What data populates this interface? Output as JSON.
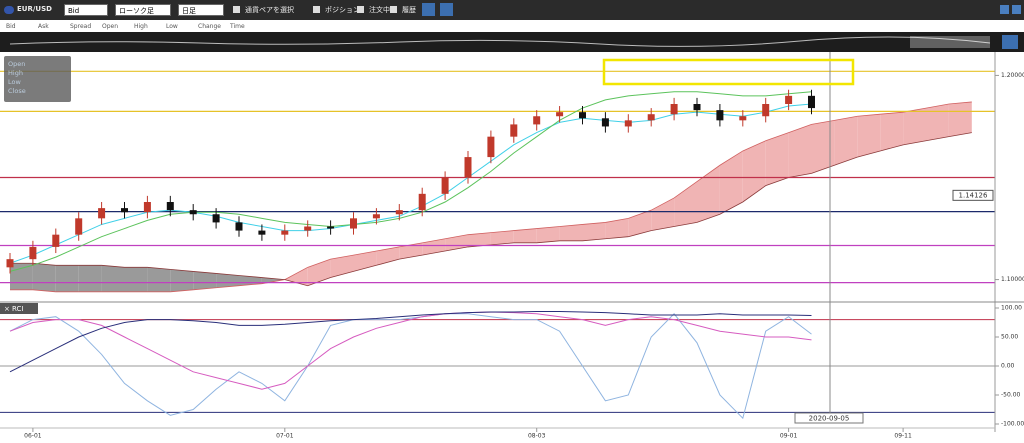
{
  "toolbar": {
    "pair": "EUR/USD",
    "price_type": "Bid",
    "chart_type": "ローソク足",
    "period": "日足",
    "select_pair": "通貨ペアを選択",
    "position": "ポジション",
    "orders": "注文中",
    "history": "履歴"
  },
  "info_bar": [
    "Bid",
    "Ask",
    "Spread",
    "Open",
    "High",
    "Low",
    "Change",
    "Time"
  ],
  "ohlc_box": [
    "Open",
    "High",
    "Low",
    "Close"
  ],
  "cursor_date": "2020-09-05",
  "chart_data": [
    {
      "type": "candlestick",
      "categories": [
        null,
        "06-01",
        null,
        null,
        null,
        null,
        null,
        null,
        null,
        null,
        null,
        null,
        "07-01",
        null,
        null,
        null,
        null,
        null,
        null,
        null,
        null,
        null,
        null,
        "08-03",
        null,
        null,
        null,
        null,
        null,
        null,
        null,
        null,
        null,
        null,
        "09-01",
        null,
        null,
        null,
        null,
        "09-11",
        null,
        null,
        null
      ],
      "open": [
        1.106,
        1.11,
        1.116,
        1.122,
        1.13,
        1.135,
        1.133,
        1.138,
        1.134,
        1.132,
        1.128,
        1.124,
        1.122,
        1.124,
        1.126,
        1.125,
        1.13,
        1.132,
        1.134,
        1.142,
        1.15,
        1.16,
        1.17,
        1.176,
        1.18,
        1.182,
        1.179,
        1.175,
        1.178,
        1.181,
        1.186,
        1.183,
        1.178,
        1.18,
        1.186,
        1.19,
        null,
        null,
        null,
        null,
        null,
        null,
        null
      ],
      "high": [
        1.113,
        1.119,
        1.125,
        1.133,
        1.138,
        1.138,
        1.141,
        1.141,
        1.137,
        1.135,
        1.131,
        1.127,
        1.127,
        1.129,
        1.129,
        1.133,
        1.135,
        1.137,
        1.145,
        1.153,
        1.163,
        1.173,
        1.179,
        1.183,
        1.185,
        1.185,
        1.182,
        1.181,
        1.184,
        1.189,
        1.189,
        1.186,
        1.183,
        1.189,
        1.193,
        1.193,
        null,
        null,
        null,
        null,
        null,
        null,
        null
      ],
      "low": [
        1.103,
        1.107,
        1.113,
        1.119,
        1.127,
        1.13,
        1.13,
        1.131,
        1.129,
        1.125,
        1.121,
        1.119,
        1.119,
        1.121,
        1.122,
        1.122,
        1.127,
        1.129,
        1.131,
        1.139,
        1.147,
        1.157,
        1.167,
        1.173,
        1.177,
        1.176,
        1.172,
        1.172,
        1.175,
        1.178,
        1.18,
        1.175,
        1.175,
        1.177,
        1.183,
        1.181,
        null,
        null,
        null,
        null,
        null,
        null,
        null
      ],
      "close": [
        1.11,
        1.116,
        1.122,
        1.13,
        1.135,
        1.133,
        1.138,
        1.134,
        1.132,
        1.128,
        1.124,
        1.122,
        1.124,
        1.126,
        1.125,
        1.13,
        1.132,
        1.134,
        1.142,
        1.15,
        1.16,
        1.17,
        1.176,
        1.18,
        1.182,
        1.179,
        1.175,
        1.178,
        1.181,
        1.186,
        1.183,
        1.178,
        1.18,
        1.186,
        1.19,
        1.184,
        null,
        null,
        null,
        null,
        null,
        null,
        null
      ],
      "up_color": "#c0392b",
      "down_color": "#111111",
      "lines": [
        {
          "color": "#40d0e8",
          "values": [
            1.108,
            1.112,
            1.117,
            1.122,
            1.127,
            1.13,
            1.133,
            1.134,
            1.133,
            1.131,
            1.128,
            1.126,
            1.124,
            1.124,
            1.125,
            1.127,
            1.129,
            1.131,
            1.136,
            1.142,
            1.15,
            1.158,
            1.166,
            1.172,
            1.177,
            1.179,
            1.178,
            1.177,
            1.178,
            1.181,
            1.182,
            1.181,
            1.18,
            1.182,
            1.185,
            1.186,
            null,
            null,
            null,
            null,
            null,
            null,
            null
          ]
        },
        {
          "color": "#5cc35c",
          "values": [
            1.104,
            1.107,
            1.111,
            1.116,
            1.121,
            1.125,
            1.129,
            1.132,
            1.133,
            1.133,
            1.132,
            1.13,
            1.128,
            1.127,
            1.126,
            1.127,
            1.128,
            1.13,
            1.133,
            1.138,
            1.145,
            1.153,
            1.162,
            1.17,
            1.178,
            1.184,
            1.188,
            1.19,
            1.191,
            1.192,
            1.192,
            1.191,
            1.19,
            1.19,
            1.191,
            1.192,
            null,
            null,
            null,
            null,
            null,
            null,
            null
          ]
        }
      ],
      "cloud": {
        "span_a": [
          1.095,
          1.095,
          1.094,
          1.094,
          1.094,
          1.094,
          1.094,
          1.094,
          1.095,
          1.096,
          1.097,
          1.098,
          1.1,
          1.106,
          1.11,
          1.112,
          1.114,
          1.116,
          1.118,
          1.12,
          1.122,
          1.123,
          1.124,
          1.125,
          1.126,
          1.127,
          1.128,
          1.13,
          1.134,
          1.14,
          1.148,
          1.156,
          1.163,
          1.168,
          1.172,
          1.176,
          1.178,
          1.18,
          1.181,
          1.182,
          1.184,
          1.186,
          1.187
        ],
        "span_b": [
          1.108,
          1.108,
          1.107,
          1.107,
          1.107,
          1.106,
          1.106,
          1.105,
          1.104,
          1.103,
          1.102,
          1.101,
          1.1,
          1.097,
          1.101,
          1.104,
          1.107,
          1.11,
          1.112,
          1.114,
          1.116,
          1.117,
          1.118,
          1.118,
          1.119,
          1.119,
          1.12,
          1.121,
          1.124,
          1.126,
          1.128,
          1.132,
          1.138,
          1.146,
          1.15,
          1.152,
          1.156,
          1.16,
          1.163,
          1.166,
          1.168,
          1.17,
          1.172
        ],
        "bearish_color": "#9a9a9a",
        "bullish_color": "#f0b4b4"
      },
      "levels": [
        {
          "value": 1.202,
          "color": "#e6c229"
        },
        {
          "value": 1.1824,
          "color": "#e6c229"
        },
        {
          "value": 1.15,
          "color": "#c0304a"
        },
        {
          "value": 1.1333,
          "color": "#1c2a6b"
        },
        {
          "value": 1.1167,
          "color": "#c040c0"
        },
        {
          "value": 1.0985,
          "color": "#c040c0"
        }
      ],
      "price_label": {
        "value": 1.14126,
        "label": "1.14126"
      },
      "ylim": [
        1.09,
        1.21
      ],
      "yticks": [
        {
          "value": 1.2,
          "label": "1.20000"
        },
        {
          "value": 1.1,
          "label": "1.10000"
        }
      ]
    },
    {
      "type": "line",
      "title": "RCI",
      "series": [
        {
          "color": "#8fb4e0",
          "values": [
            60,
            80,
            85,
            60,
            20,
            -30,
            -60,
            -85,
            -75,
            -40,
            -10,
            -30,
            -60,
            0,
            70,
            80,
            80,
            80,
            85,
            90,
            90,
            85,
            80,
            80,
            60,
            0,
            -60,
            -50,
            50,
            90,
            40,
            -50,
            -90,
            60,
            85,
            55,
            null,
            null,
            null,
            null,
            null,
            null,
            null
          ]
        },
        {
          "color": "#d65cc0",
          "values": [
            60,
            75,
            80,
            80,
            70,
            50,
            30,
            10,
            -10,
            -20,
            -30,
            -40,
            -30,
            0,
            30,
            50,
            65,
            75,
            85,
            90,
            92,
            93,
            92,
            90,
            85,
            80,
            70,
            80,
            85,
            80,
            70,
            60,
            55,
            50,
            50,
            45,
            null,
            null,
            null,
            null,
            null,
            null,
            null
          ]
        },
        {
          "color": "#2a2f7a",
          "values": [
            -10,
            10,
            30,
            50,
            65,
            75,
            80,
            80,
            78,
            75,
            70,
            70,
            72,
            75,
            78,
            80,
            82,
            85,
            88,
            90,
            92,
            93,
            93,
            94,
            94,
            93,
            92,
            90,
            88,
            88,
            88,
            90,
            88,
            88,
            88,
            87,
            null,
            null,
            null,
            null,
            null,
            null,
            null
          ]
        }
      ],
      "levels": [
        {
          "value": 80,
          "color": "#c0304a"
        },
        {
          "value": 0,
          "color": "#999999"
        },
        {
          "value": -80,
          "color": "#2a2f7a"
        }
      ],
      "ylim": [
        -100,
        100
      ],
      "yticks": [
        {
          "value": 100,
          "label": "100.00"
        },
        {
          "value": 50,
          "label": "50.00"
        },
        {
          "value": 0,
          "label": "0.00"
        },
        {
          "value": -50,
          "label": "-50.00"
        },
        {
          "value": -100,
          "label": "-100.00"
        }
      ]
    }
  ]
}
